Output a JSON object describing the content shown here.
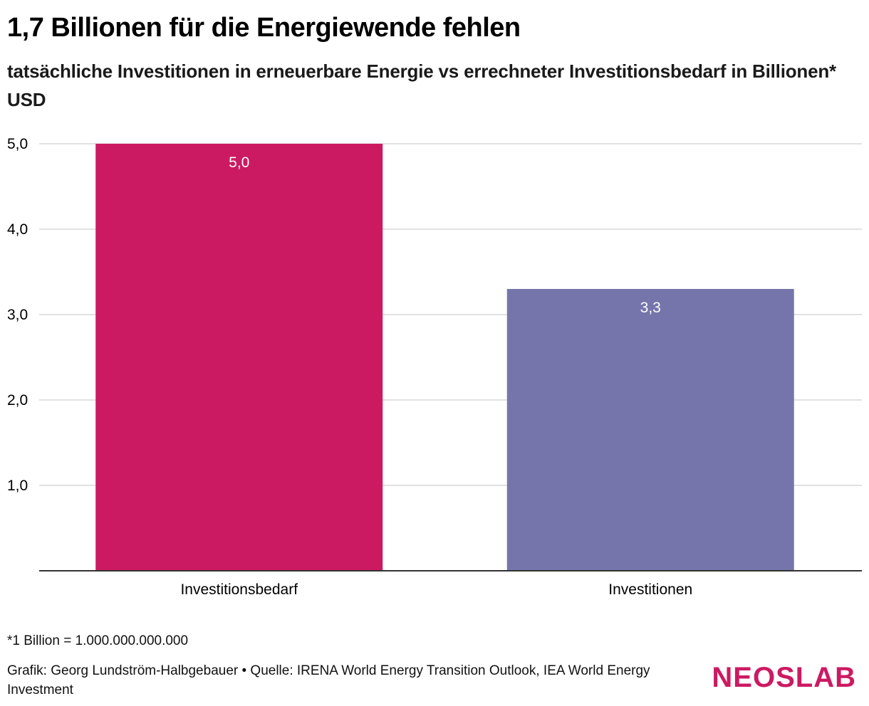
{
  "header": {
    "title": "1,7 Billionen für die Energiewende fehlen",
    "subtitle": "tatsächliche Investitionen in erneuerbare Energie vs errechneter Investitionsbedarf in Billionen* USD"
  },
  "chart_data": {
    "type": "bar",
    "categories": [
      "Investitionsbedarf",
      "Investitionen"
    ],
    "values": [
      5.0,
      3.3
    ],
    "value_labels": [
      "5,0",
      "3,3"
    ],
    "colors": [
      "#cc1a62",
      "#7675ab"
    ],
    "title": "1,7 Billionen für die Energiewende fehlen",
    "xlabel": "",
    "ylabel": "",
    "ylim": [
      0,
      5
    ],
    "yticks": [
      1,
      2,
      3,
      4,
      5
    ],
    "ytick_labels": [
      "1,0",
      "2,0",
      "3,0",
      "4,0",
      "5,0"
    ],
    "grid": true,
    "legend": "none"
  },
  "footer": {
    "note": "*1 Billion = 1.000.000.000.000",
    "credit": "Grafik: Georg Lundström-Halbgebauer • Quelle: IRENA World Energy Transition Outlook, IEA World Energy Investment",
    "logo_part1": "NEOS",
    "logo_part2": "LAB",
    "logo_color_1": "#cc1a62",
    "logo_color_2": "#cc1a62"
  }
}
